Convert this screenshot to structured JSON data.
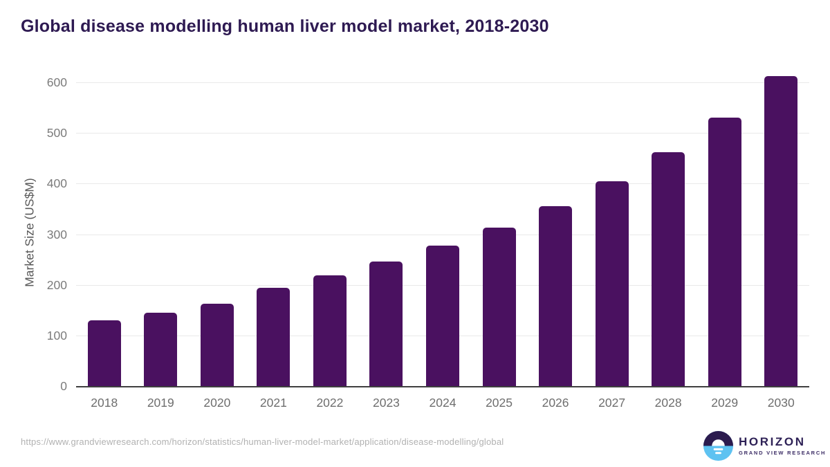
{
  "chart_data": {
    "type": "bar",
    "title": "Global disease modelling human liver model market, 2018-2030",
    "categories": [
      "2018",
      "2019",
      "2020",
      "2021",
      "2022",
      "2023",
      "2024",
      "2025",
      "2026",
      "2027",
      "2028",
      "2029",
      "2030"
    ],
    "values": [
      130,
      145,
      162,
      194,
      219,
      246,
      277,
      313,
      355,
      405,
      462,
      530,
      612
    ],
    "xlabel": "",
    "ylabel": "Market Size (US$M)",
    "ylim": [
      0,
      600
    ],
    "yticks": [
      0,
      100,
      200,
      300,
      400,
      500,
      600
    ],
    "grid": true,
    "legend": "none",
    "bar_color": "#4a1160"
  },
  "footer": {
    "source_url": "https://www.grandviewresearch.com/horizon/statistics/human-liver-model-market/application/disease-modelling/global",
    "logo": {
      "name": "HORIZON",
      "subtitle": "GRAND VIEW RESEARCH"
    }
  },
  "colors": {
    "title_text": "#2e1a52",
    "bar": "#4a1160",
    "tick_label": "#6e6e6e",
    "gridline": "#e9e9e9",
    "url_text": "#b1b1b1",
    "logo_dark": "#2b1b4e",
    "logo_blue": "#5ec2f1"
  }
}
